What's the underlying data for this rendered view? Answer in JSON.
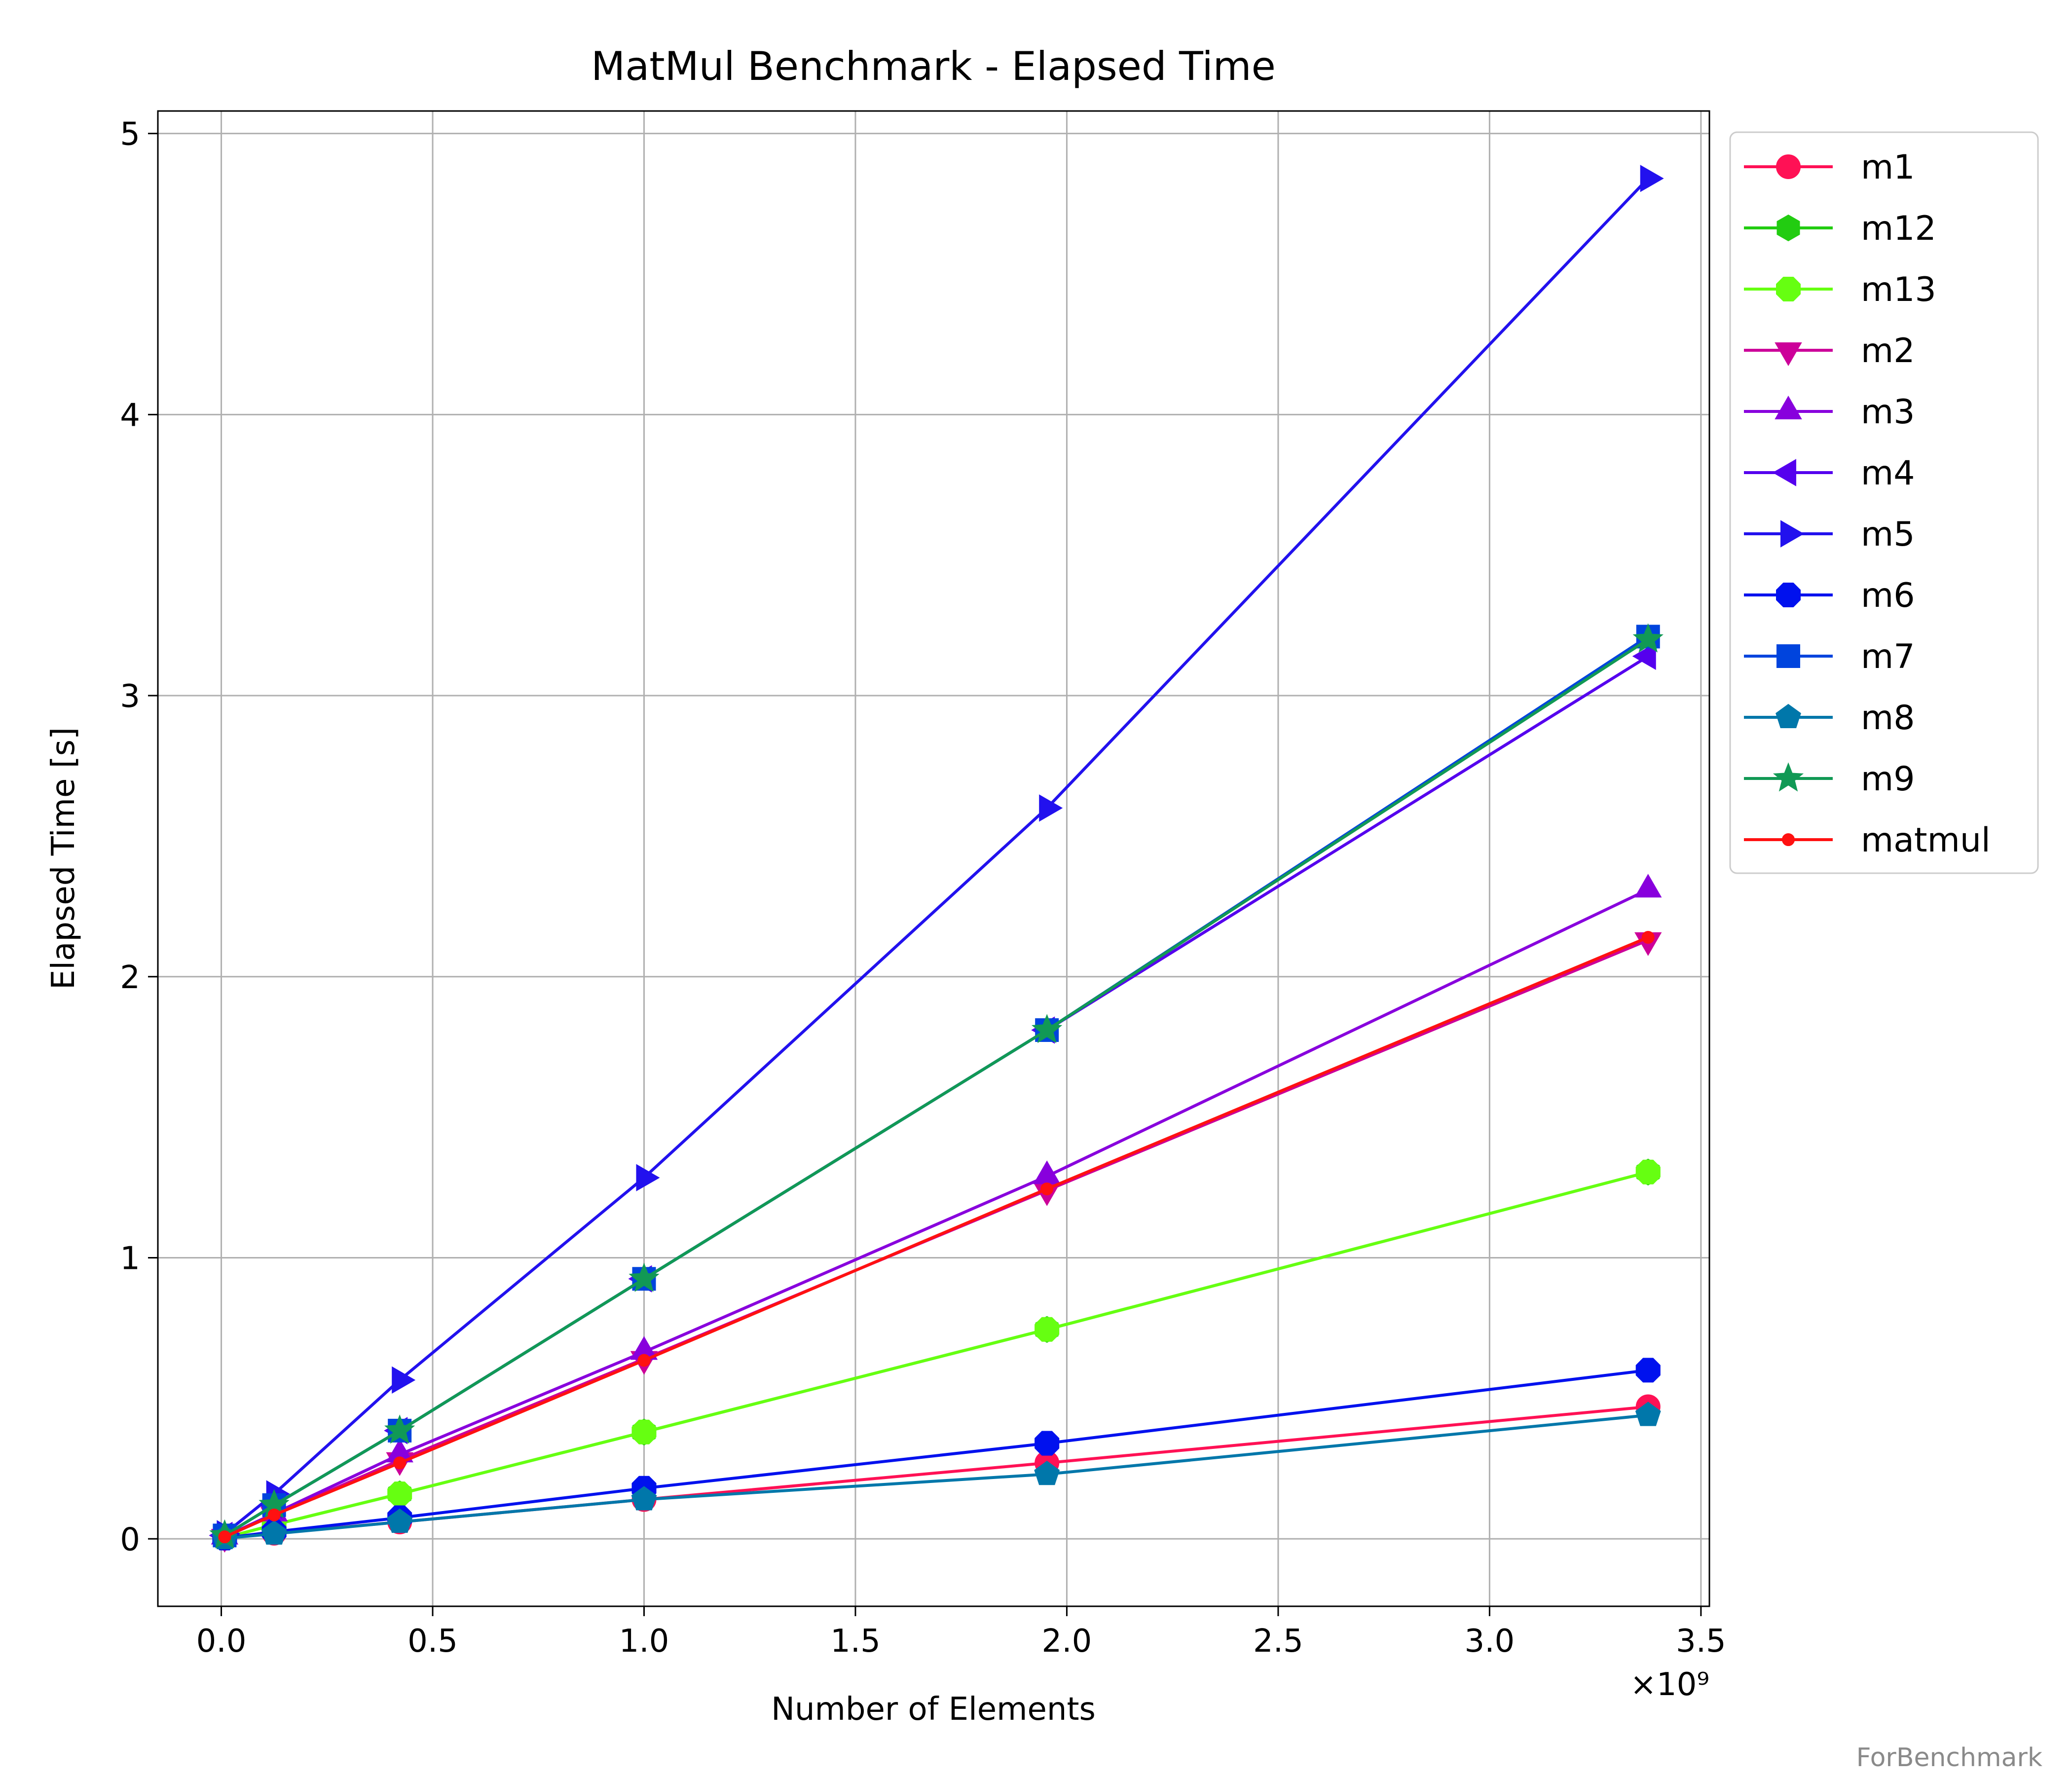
{
  "chart_data": {
    "type": "line",
    "title": "MatMul Benchmark - Elapsed Time",
    "xlabel": "Number of Elements",
    "ylabel": "Elapsed Time [s]",
    "x_multiplier_label": "×10⁹",
    "x_unit_scale": 1000000000,
    "xlim": [
      -0.15,
      3.52
    ],
    "ylim": [
      -0.24,
      5.08
    ],
    "xticks": [
      0.0,
      0.5,
      1.0,
      1.5,
      2.0,
      2.5,
      3.0,
      3.5
    ],
    "xtick_labels": [
      "0.0",
      "0.5",
      "1.0",
      "1.5",
      "2.0",
      "2.5",
      "3.0",
      "3.5"
    ],
    "yticks": [
      0,
      1,
      2,
      3,
      4,
      5
    ],
    "ytick_labels": [
      "0",
      "1",
      "2",
      "3",
      "4",
      "5"
    ],
    "grid": true,
    "legend_position": "outside-right-top",
    "x": [
      0.008,
      0.125,
      0.422,
      1.0,
      1.953,
      3.375
    ],
    "series": [
      {
        "name": "m1",
        "color": "#ff1155",
        "marker": "circle",
        "values": [
          0.002,
          0.02,
          0.06,
          0.14,
          0.27,
          0.47
        ]
      },
      {
        "name": "m12",
        "color": "#22cc11",
        "marker": "hexagon",
        "values": [
          0.004,
          0.05,
          0.16,
          0.38,
          0.745,
          1.305
        ]
      },
      {
        "name": "m13",
        "color": "#66ff11",
        "marker": "octagon",
        "values": [
          0.004,
          0.05,
          0.16,
          0.38,
          0.745,
          1.305
        ]
      },
      {
        "name": "m2",
        "color": "#cc0099",
        "marker": "triangle-down",
        "values": [
          0.007,
          0.085,
          0.28,
          0.64,
          1.24,
          2.13
        ]
      },
      {
        "name": "m3",
        "color": "#8800dd",
        "marker": "triangle-up",
        "values": [
          0.008,
          0.09,
          0.3,
          0.665,
          1.29,
          2.31
        ]
      },
      {
        "name": "m4",
        "color": "#5500ee",
        "marker": "triangle-left",
        "values": [
          0.012,
          0.12,
          0.385,
          0.925,
          1.81,
          3.14
        ]
      },
      {
        "name": "m5",
        "color": "#2211ee",
        "marker": "triangle-right",
        "values": [
          0.018,
          0.16,
          0.565,
          1.285,
          2.6,
          4.84
        ]
      },
      {
        "name": "m6",
        "color": "#0011ee",
        "marker": "octagon",
        "values": [
          0.003,
          0.025,
          0.075,
          0.18,
          0.34,
          0.6
        ]
      },
      {
        "name": "m7",
        "color": "#0044dd",
        "marker": "square",
        "values": [
          0.012,
          0.12,
          0.385,
          0.925,
          1.81,
          3.21
        ]
      },
      {
        "name": "m8",
        "color": "#0077aa",
        "marker": "pentagon",
        "values": [
          0.002,
          0.018,
          0.06,
          0.14,
          0.23,
          0.44
        ]
      },
      {
        "name": "m9",
        "color": "#119955",
        "marker": "star",
        "values": [
          0.012,
          0.12,
          0.385,
          0.925,
          1.81,
          3.2
        ]
      },
      {
        "name": "matmul",
        "color": "#ff1111",
        "marker": "point",
        "values": [
          0.007,
          0.085,
          0.27,
          0.635,
          1.245,
          2.14
        ]
      }
    ]
  },
  "watermark": "ForBenchmark"
}
